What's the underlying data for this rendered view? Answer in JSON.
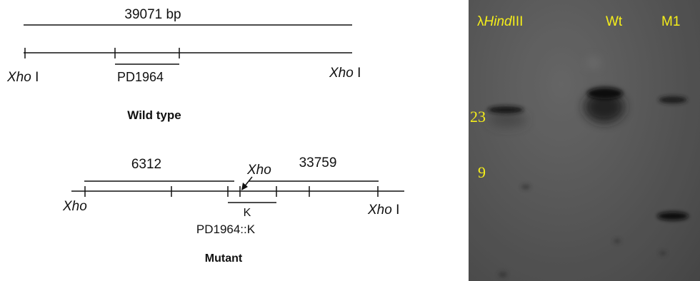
{
  "wild_type": {
    "length_label": "39071 bp",
    "site_left": "Xho",
    "site_left_suffix": " I",
    "site_right": "Xho",
    "site_right_suffix": " I",
    "insert_label": "PD1964",
    "caption": "Wild type"
  },
  "mutant": {
    "fragment_left_label": "6312",
    "fragment_right_label": "33759",
    "new_site_label": "Xho",
    "site_left": "Xho",
    "site_right": "Xho",
    "site_right_suffix": " I",
    "cassette_label": "K",
    "insert_label": "PD1964::K",
    "caption": "Mutant"
  },
  "blot": {
    "lanes": {
      "marker_prefix": "λ",
      "marker_name": "Hind",
      "marker_suffix": "III",
      "wt": "Wt",
      "m1": "M1"
    },
    "size_markers": [
      "23",
      "9"
    ],
    "label_color": "#f5ee1a"
  }
}
